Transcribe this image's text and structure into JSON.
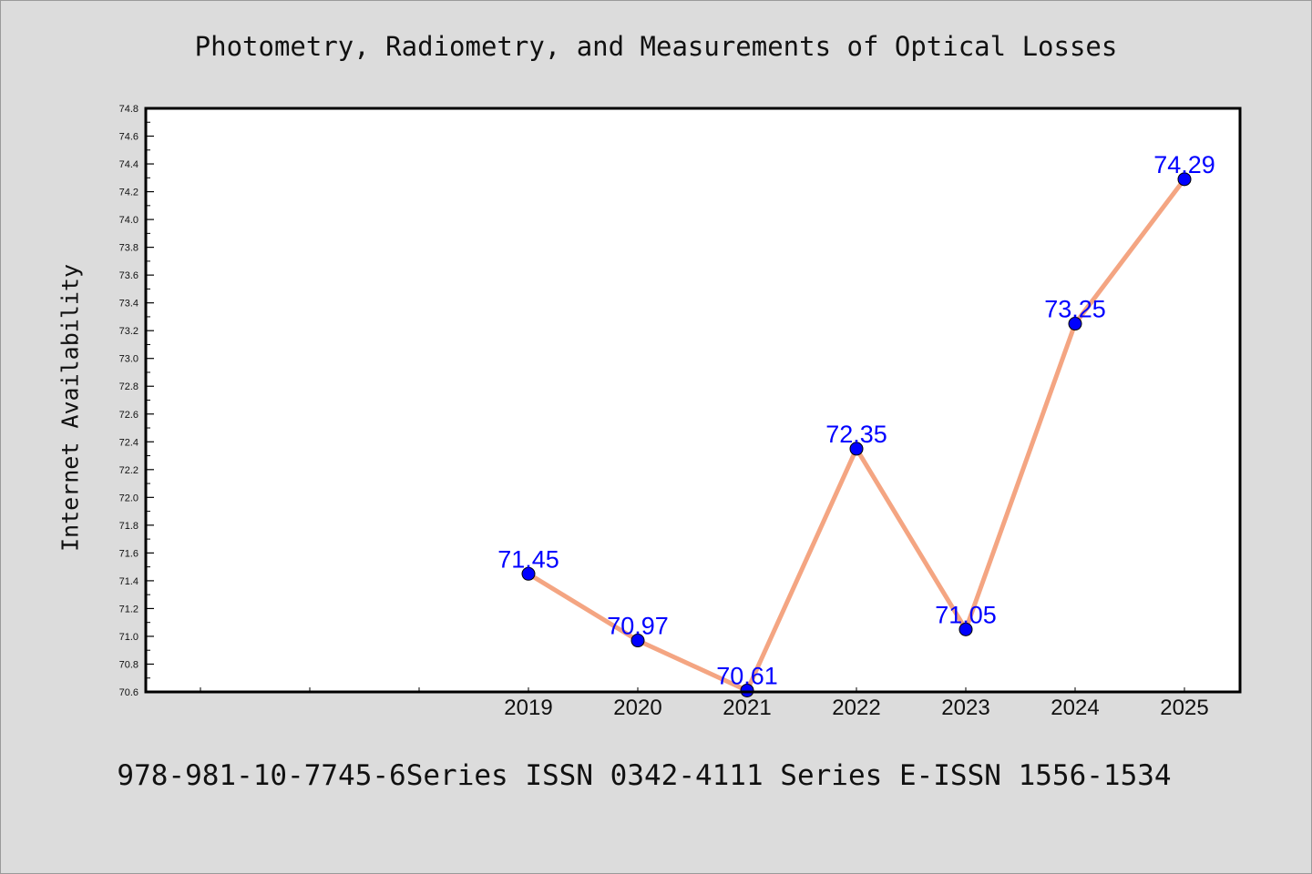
{
  "colors": {
    "background": "#dcdcdc",
    "plot_background": "#ffffff",
    "line": "#f4a582",
    "marker": "#0000ff",
    "data_label": "#0000ff"
  },
  "chart_data": {
    "type": "line",
    "title": "Photometry, Radiometry, and Measurements of Optical Losses",
    "xlabel": "",
    "ylabel": "Internet Availability",
    "categories": [
      "2019",
      "2020",
      "2021",
      "2022",
      "2023",
      "2024",
      "2025"
    ],
    "series": [
      {
        "values": [
          71.45,
          70.97,
          70.61,
          72.35,
          71.05,
          73.25,
          74.29
        ],
        "labels": [
          "71.45",
          "70.97",
          "70.61",
          "72.35",
          "71.05",
          "73.25",
          "74.29"
        ]
      }
    ],
    "ylim": [
      70.6,
      74.8
    ],
    "ytick_step": 0.2,
    "x_slots": 10,
    "grid": false,
    "legend": "none"
  },
  "footer": {
    "text": "978-981-10-7745-6Series ISSN 0342-4111 Series E-ISSN 1556-1534"
  }
}
